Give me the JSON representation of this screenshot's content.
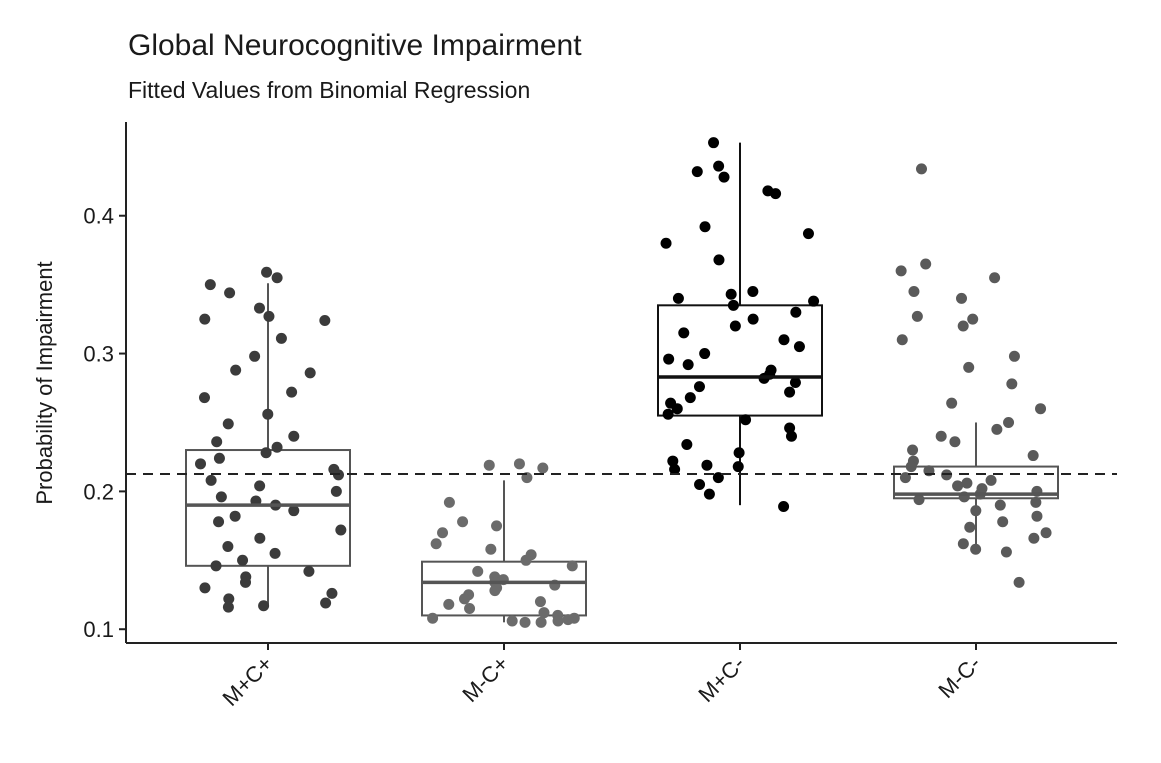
{
  "chart_data": {
    "type": "boxplot",
    "title": "Global Neurocognitive Impairment",
    "subtitle": "Fitted Values from Binomial Regression",
    "y_label": "Probability of Impairment",
    "categories": [
      "M+C+",
      "M-C+",
      "M+C-",
      "M-C-"
    ],
    "ylim": [
      0.09,
      0.468
    ],
    "yticks": [
      0.1,
      0.2,
      0.3,
      0.4
    ],
    "reference_line": 0.2126,
    "boxes": [
      {
        "whisker_low": 0.117,
        "q1": 0.146,
        "median": 0.19,
        "q3": 0.23,
        "whisker_high": 0.351,
        "color": "#3b3b3b",
        "points": [
          0.359,
          0.355,
          0.35,
          0.344,
          0.333,
          0.327,
          0.325,
          0.324,
          0.311,
          0.298,
          0.288,
          0.286,
          0.272,
          0.268,
          0.256,
          0.249,
          0.24,
          0.236,
          0.232,
          0.228,
          0.224,
          0.22,
          0.216,
          0.212,
          0.208,
          0.204,
          0.2,
          0.196,
          0.193,
          0.19,
          0.186,
          0.182,
          0.178,
          0.172,
          0.166,
          0.16,
          0.155,
          0.15,
          0.146,
          0.142,
          0.138,
          0.134,
          0.13,
          0.126,
          0.122,
          0.119,
          0.117,
          0.116
        ]
      },
      {
        "whisker_low": 0.105,
        "q1": 0.11,
        "median": 0.134,
        "q3": 0.149,
        "whisker_high": 0.208,
        "color": "#6b6b6b",
        "points": [
          0.22,
          0.219,
          0.217,
          0.21,
          0.192,
          0.178,
          0.175,
          0.17,
          0.162,
          0.158,
          0.154,
          0.15,
          0.146,
          0.142,
          0.138,
          0.136,
          0.134,
          0.132,
          0.13,
          0.128,
          0.125,
          0.122,
          0.12,
          0.118,
          0.115,
          0.112,
          0.11,
          0.108,
          0.107,
          0.106,
          0.105,
          0.105,
          0.106,
          0.108
        ]
      },
      {
        "whisker_low": 0.19,
        "q1": 0.255,
        "median": 0.283,
        "q3": 0.335,
        "whisker_high": 0.453,
        "color": "#000000",
        "points": [
          0.453,
          0.436,
          0.432,
          0.428,
          0.418,
          0.416,
          0.392,
          0.387,
          0.38,
          0.368,
          0.345,
          0.343,
          0.34,
          0.338,
          0.335,
          0.33,
          0.325,
          0.32,
          0.315,
          0.31,
          0.305,
          0.3,
          0.296,
          0.292,
          0.288,
          0.285,
          0.282,
          0.279,
          0.276,
          0.272,
          0.268,
          0.264,
          0.26,
          0.256,
          0.252,
          0.246,
          0.24,
          0.234,
          0.228,
          0.222,
          0.219,
          0.218,
          0.216,
          0.21,
          0.205,
          0.198,
          0.189
        ]
      },
      {
        "whisker_low": 0.157,
        "q1": 0.195,
        "median": 0.198,
        "q3": 0.218,
        "whisker_high": 0.25,
        "color": "#5a5a5a",
        "points": [
          0.434,
          0.365,
          0.36,
          0.355,
          0.345,
          0.34,
          0.327,
          0.325,
          0.32,
          0.31,
          0.298,
          0.29,
          0.278,
          0.264,
          0.26,
          0.25,
          0.245,
          0.24,
          0.236,
          0.23,
          0.226,
          0.222,
          0.218,
          0.215,
          0.212,
          0.21,
          0.208,
          0.206,
          0.204,
          0.202,
          0.2,
          0.198,
          0.196,
          0.194,
          0.192,
          0.19,
          0.186,
          0.182,
          0.178,
          0.174,
          0.17,
          0.166,
          0.162,
          0.158,
          0.156,
          0.134
        ]
      }
    ]
  }
}
